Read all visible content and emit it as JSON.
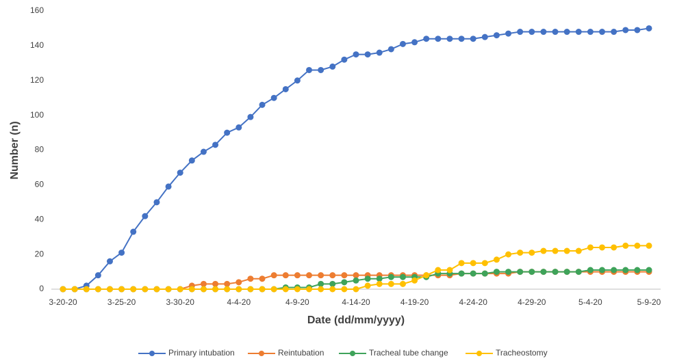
{
  "chart_data": {
    "type": "line",
    "x_label": "Date (dd/mm/yyyy)",
    "y_label": "Number (n)",
    "categories": [
      "3-20-20",
      null,
      null,
      null,
      null,
      "3-25-20",
      null,
      null,
      null,
      null,
      "3-30-20",
      null,
      null,
      null,
      null,
      "4-4-20",
      null,
      null,
      null,
      null,
      "4-9-20",
      null,
      null,
      null,
      null,
      "4-14-20",
      null,
      null,
      null,
      null,
      "4-19-20",
      null,
      null,
      null,
      null,
      "4-24-20",
      null,
      null,
      null,
      null,
      "4-29-20",
      null,
      null,
      null,
      null,
      "5-4-20",
      null,
      null,
      null,
      null,
      "5-9-20"
    ],
    "series": [
      {
        "name": "Primary intubation",
        "color": "#4472c4",
        "values": [
          0,
          0,
          2,
          8,
          16,
          21,
          33,
          42,
          50,
          59,
          67,
          74,
          79,
          83,
          90,
          93,
          99,
          106,
          110,
          115,
          120,
          126,
          126,
          128,
          132,
          135,
          135,
          136,
          138,
          141,
          142,
          144,
          144,
          144,
          144,
          144,
          145,
          146,
          147,
          148,
          148,
          148,
          148,
          148,
          148,
          148,
          148,
          148,
          149,
          149,
          150
        ]
      },
      {
        "name": "Reintubation",
        "color": "#ed7d31",
        "values": [
          0,
          0,
          0,
          0,
          0,
          0,
          0,
          0,
          0,
          0,
          0,
          2,
          3,
          3,
          3,
          4,
          6,
          6,
          8,
          8,
          8,
          8,
          8,
          8,
          8,
          8,
          8,
          8,
          8,
          8,
          8,
          8,
          8,
          8,
          9,
          9,
          9,
          9,
          9,
          10,
          10,
          10,
          10,
          10,
          10,
          10,
          10,
          10,
          10,
          10,
          10
        ]
      },
      {
        "name": "Tracheal tube change",
        "color": "#3fa35a",
        "values": [
          0,
          0,
          0,
          0,
          0,
          0,
          0,
          0,
          0,
          0,
          0,
          0,
          0,
          0,
          0,
          0,
          0,
          0,
          0,
          1,
          1,
          1,
          3,
          3,
          4,
          5,
          6,
          6,
          7,
          7,
          7,
          7,
          9,
          9,
          9,
          9,
          9,
          10,
          10,
          10,
          10,
          10,
          10,
          10,
          10,
          11,
          11,
          11,
          11,
          11,
          11
        ]
      },
      {
        "name": "Tracheostomy",
        "color": "#ffc000",
        "values": [
          0,
          0,
          0,
          0,
          0,
          0,
          0,
          0,
          0,
          0,
          0,
          0,
          0,
          0,
          0,
          0,
          0,
          0,
          0,
          0,
          0,
          0,
          0,
          0,
          0,
          0,
          2,
          3,
          3,
          3,
          5,
          8,
          11,
          11,
          15,
          15,
          15,
          17,
          20,
          21,
          21,
          22,
          22,
          22,
          22,
          24,
          24,
          24,
          25,
          25,
          25
        ]
      }
    ],
    "ylim": [
      0,
      160
    ],
    "yticks": [
      0,
      20,
      40,
      60,
      80,
      100,
      120,
      140,
      160
    ],
    "grid": false,
    "legend": "bottom"
  }
}
